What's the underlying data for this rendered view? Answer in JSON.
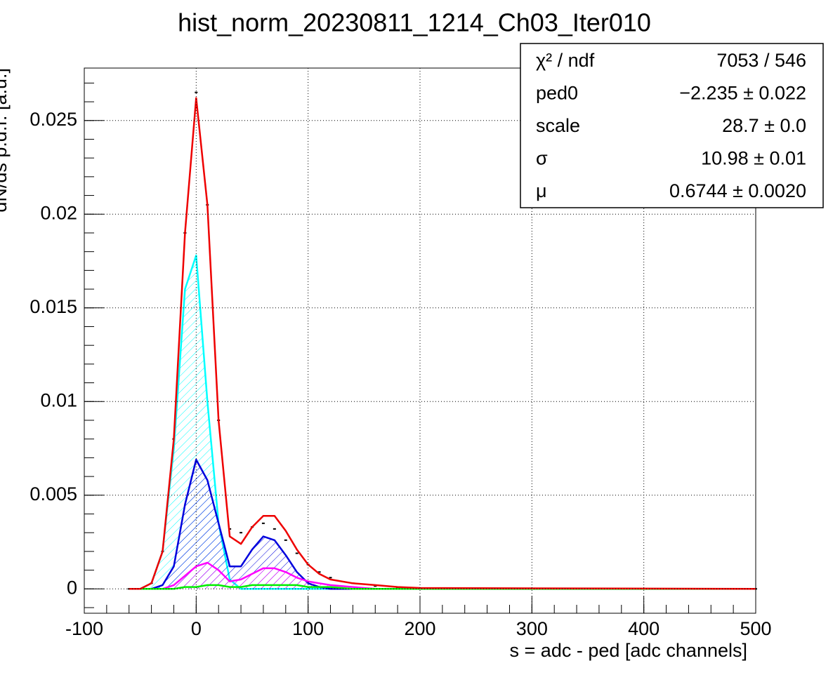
{
  "chart_data": {
    "type": "line",
    "title": "hist_norm_20230811_1214_Ch03_Iter010",
    "x_label": "s = adc - ped [adc channels]",
    "y_label": "dN/ds p.d.f. [a.u.]",
    "xlim": [
      -100,
      500
    ],
    "xticks": [
      -100,
      0,
      100,
      200,
      300,
      400,
      500
    ],
    "ylim": [
      -0.0013,
      0.0278
    ],
    "yticks": [
      0,
      0.005,
      0.01,
      0.015,
      0.02,
      0.025
    ],
    "minor_divisions": 5,
    "grid": true,
    "x": [
      -60,
      -50,
      -40,
      -30,
      -20,
      -10,
      0,
      10,
      20,
      30,
      40,
      50,
      60,
      70,
      80,
      90,
      100,
      110,
      120,
      140,
      160,
      180,
      200,
      500
    ],
    "series": [
      {
        "color": "#000000",
        "style": "points",
        "values": [
          0,
          0,
          0.0003,
          0.002,
          0.008,
          0.019,
          0.0265,
          0.0205,
          0.009,
          0.0032,
          0.003,
          0.0033,
          0.0035,
          0.0032,
          0.0026,
          0.0019,
          0.0013,
          0.0009,
          0.0006,
          0.0003,
          0.00015,
          5e-05,
          2e-05,
          0
        ]
      },
      {
        "color": "#00ffff",
        "style": "line",
        "hatch": true,
        "values": [
          0,
          0,
          0.0003,
          0.002,
          0.0075,
          0.016,
          0.0178,
          0.01,
          0.0035,
          0.0005,
          0,
          0,
          0,
          0,
          0,
          0,
          0,
          0,
          0,
          0,
          0,
          0,
          0,
          0
        ]
      },
      {
        "color": "#0000dd",
        "style": "line",
        "hatch": true,
        "values": [
          0,
          0,
          0,
          0.0002,
          0.0012,
          0.0045,
          0.0069,
          0.0058,
          0.0035,
          0.0012,
          0.0012,
          0.0021,
          0.0028,
          0.0026,
          0.0018,
          0.0009,
          0.0003,
          0.0001,
          0,
          0,
          0,
          0,
          0,
          0
        ]
      },
      {
        "color": "#ff00ff",
        "style": "line",
        "hatch": true,
        "values": [
          0,
          0,
          0,
          0,
          0.0002,
          0.0007,
          0.0012,
          0.0014,
          0.001,
          0.0004,
          0.0005,
          0.0008,
          0.0011,
          0.0011,
          0.0009,
          0.0006,
          0.0004,
          0.0003,
          0.0002,
          0.0001,
          0,
          0,
          0,
          0
        ]
      },
      {
        "color": "#00ee00",
        "style": "line",
        "values": [
          0,
          0,
          0,
          0,
          0,
          0.0001,
          0.0001,
          0.0002,
          0.0002,
          0.0001,
          0.0001,
          0.0002,
          0.0002,
          0.0002,
          0.0002,
          0.0002,
          0.0001,
          0.0001,
          0.0001,
          0,
          0,
          0,
          0,
          0
        ]
      },
      {
        "color": "#ee0000",
        "style": "line",
        "values": [
          0,
          0,
          0.0003,
          0.002,
          0.008,
          0.019,
          0.0262,
          0.0205,
          0.009,
          0.0028,
          0.0024,
          0.0033,
          0.0039,
          0.0039,
          0.0031,
          0.0021,
          0.0013,
          0.0008,
          0.0005,
          0.0003,
          0.0002,
          0.0001,
          5e-05,
          0
        ]
      }
    ],
    "stats_box": {
      "rows": [
        [
          "χ² / ndf",
          "7053 / 546"
        ],
        [
          "ped0",
          "−2.235 ± 0.022"
        ],
        [
          "scale",
          "28.7 ± 0.0"
        ],
        [
          "σ",
          "10.98 ± 0.01"
        ],
        [
          "μ",
          "0.6744 ± 0.0020"
        ]
      ]
    }
  }
}
